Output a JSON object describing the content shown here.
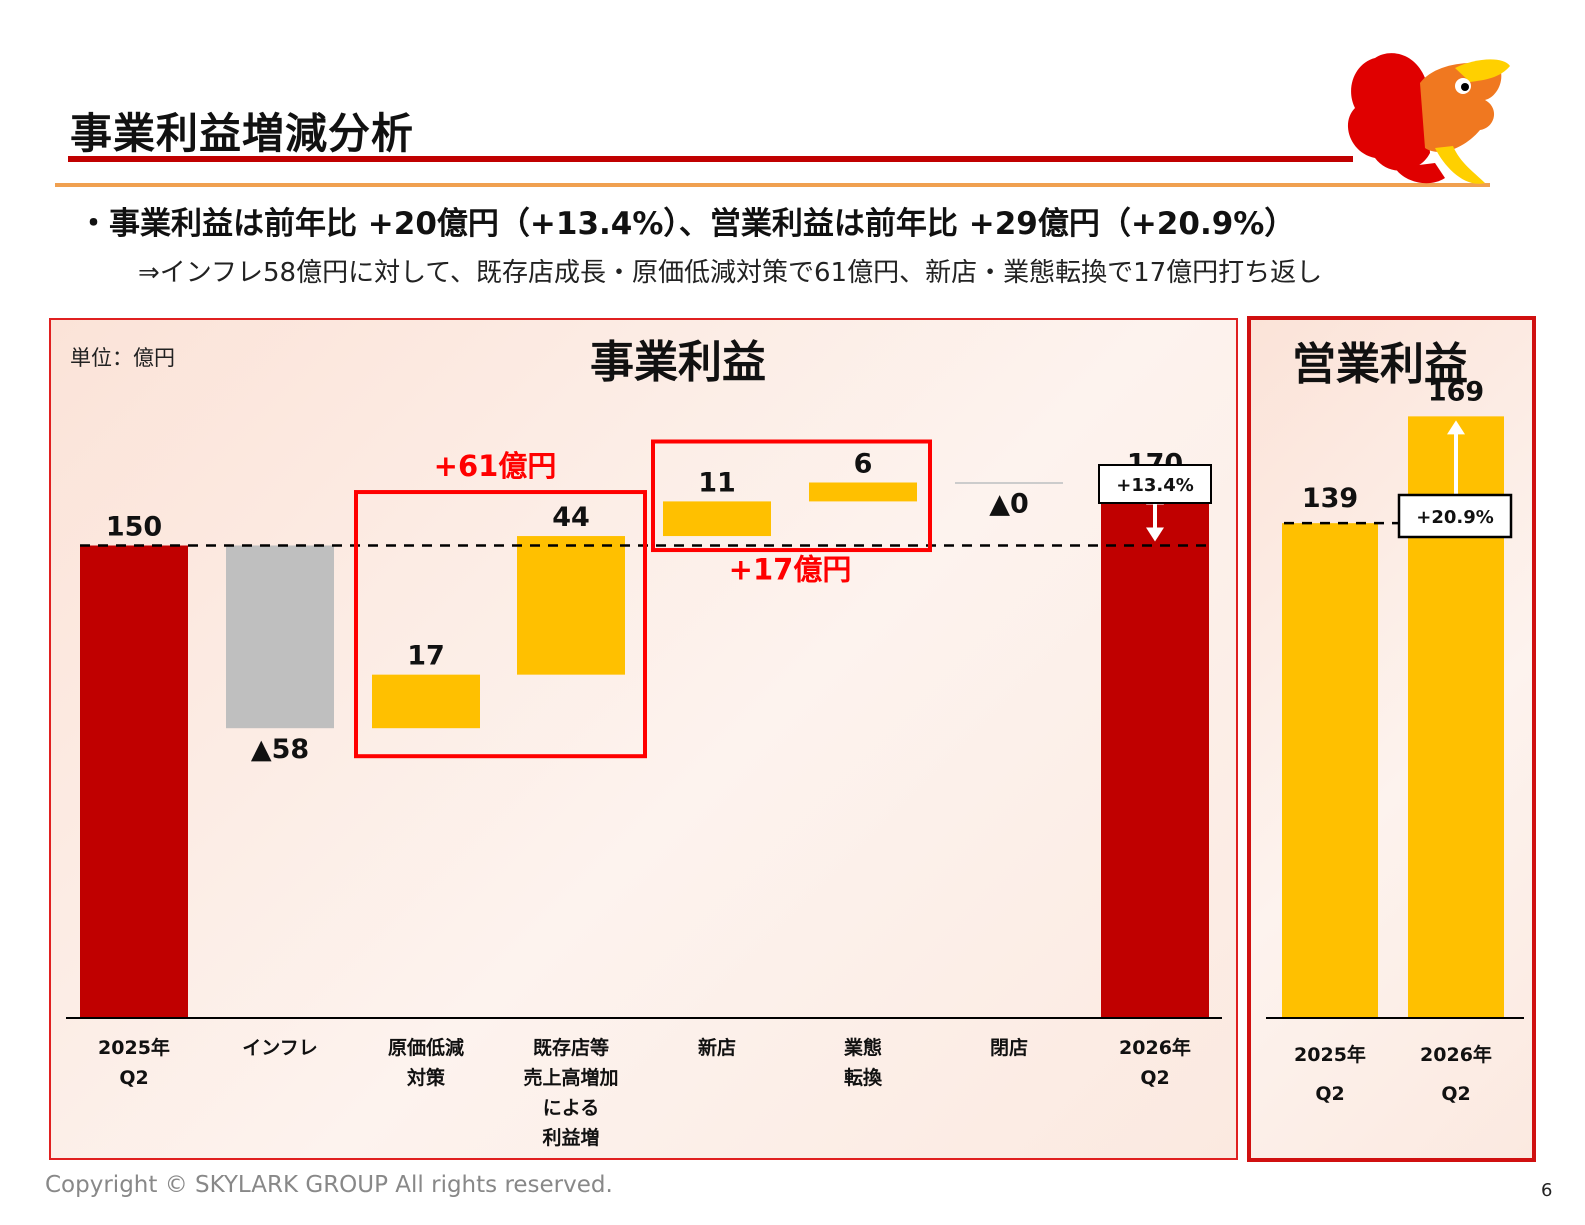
{
  "slide": {
    "title": "事業利益増減分析",
    "bullet": "・事業利益は前年比 +20億円（+13.4%）、営業利益は前年比 +29億円（+20.9%）",
    "subline": "⇒インフレ58億円に対して、既存店成長・原価低減対策で61億円、新店・業態転換で17億円打ち返し",
    "footer": "Copyright © SKYLARK GROUP All rights reserved.",
    "page_number": "6",
    "colors": {
      "red": "#c00000",
      "yellow": "#ffc000",
      "gray": "#bfbfbf",
      "frame_red": "#ff0000",
      "callout_red": "#ff0000"
    }
  },
  "chart_data": [
    {
      "type": "bar",
      "subtype": "waterfall",
      "title": "事業利益",
      "unit_label": "単位：億円",
      "categories": [
        [
          "2025年",
          "Q2"
        ],
        [
          "インフレ"
        ],
        [
          "原価低減",
          "対策"
        ],
        [
          "既存店等",
          "売上高増加",
          "による",
          "利益増"
        ],
        [
          "新店"
        ],
        [
          "業態",
          "転換"
        ],
        [
          "閉店"
        ],
        [
          "2026年",
          "Q2"
        ]
      ],
      "values": [
        150,
        -58,
        17,
        44,
        11,
        6,
        0,
        170
      ],
      "measure": [
        "total",
        "relative",
        "relative",
        "relative",
        "relative",
        "relative",
        "relative",
        "total"
      ],
      "value_labels": [
        "150",
        "▲58",
        "17",
        "44",
        "11",
        "6",
        "▲0",
        "170"
      ],
      "group_annotations": [
        {
          "text": "+61億円",
          "categories": [
            "原価低減対策",
            "既存店等売上高増加による利益増"
          ]
        },
        {
          "text": "+17億円",
          "categories": [
            "新店",
            "業態転換"
          ]
        }
      ],
      "growth_label": "+13.4%",
      "baseline_reference": 150
    },
    {
      "type": "bar",
      "title": "営業利益",
      "categories": [
        [
          "2025年",
          "Q2"
        ],
        [
          "2026年",
          "Q2"
        ]
      ],
      "values": [
        139,
        169
      ],
      "value_labels": [
        "139",
        "169"
      ],
      "growth_label": "+20.9%",
      "baseline_reference": 139
    }
  ]
}
